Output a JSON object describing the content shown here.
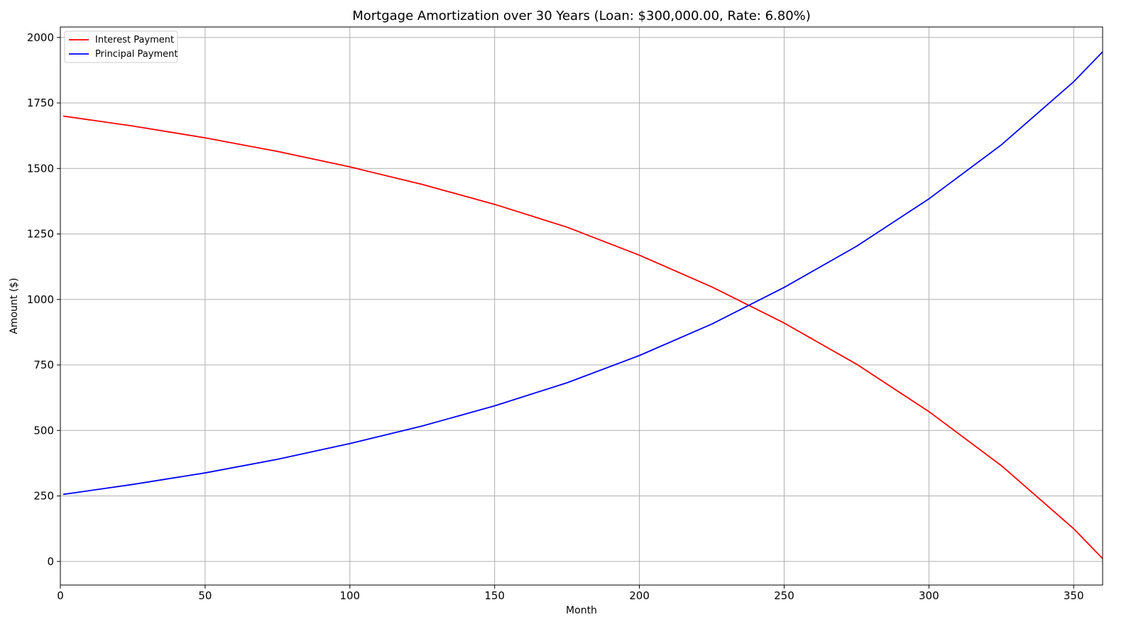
{
  "chart_data": {
    "type": "line",
    "title": "Mortgage Amortization over 30 Years (Loan: $300,000.00, Rate: 6.80%)",
    "xlabel": "Month",
    "ylabel": "Amount ($)",
    "xlim": [
      0,
      360
    ],
    "ylim": [
      -90,
      2040
    ],
    "xticks": [
      0,
      50,
      100,
      150,
      200,
      250,
      300,
      350
    ],
    "yticks": [
      0,
      250,
      500,
      750,
      1000,
      1250,
      1500,
      1750,
      2000
    ],
    "grid": true,
    "legend_position": "top-left",
    "x": [
      1,
      25,
      50,
      75,
      100,
      125,
      150,
      175,
      200,
      225,
      250,
      275,
      300,
      325,
      350,
      360
    ],
    "series": [
      {
        "name": "Interest Payment",
        "color": "#ff0000",
        "values": [
          1700,
          1662,
          1617,
          1565,
          1506,
          1439,
          1363,
          1276,
          1169,
          1048,
          910,
          753,
          572,
          366,
          125,
          11
        ]
      },
      {
        "name": "Principal Payment",
        "color": "#0000ff",
        "values": [
          256,
          294,
          338,
          390,
          450,
          517,
          594,
          682,
          786,
          906,
          1046,
          1203,
          1384,
          1590,
          1831,
          1945
        ]
      }
    ]
  }
}
